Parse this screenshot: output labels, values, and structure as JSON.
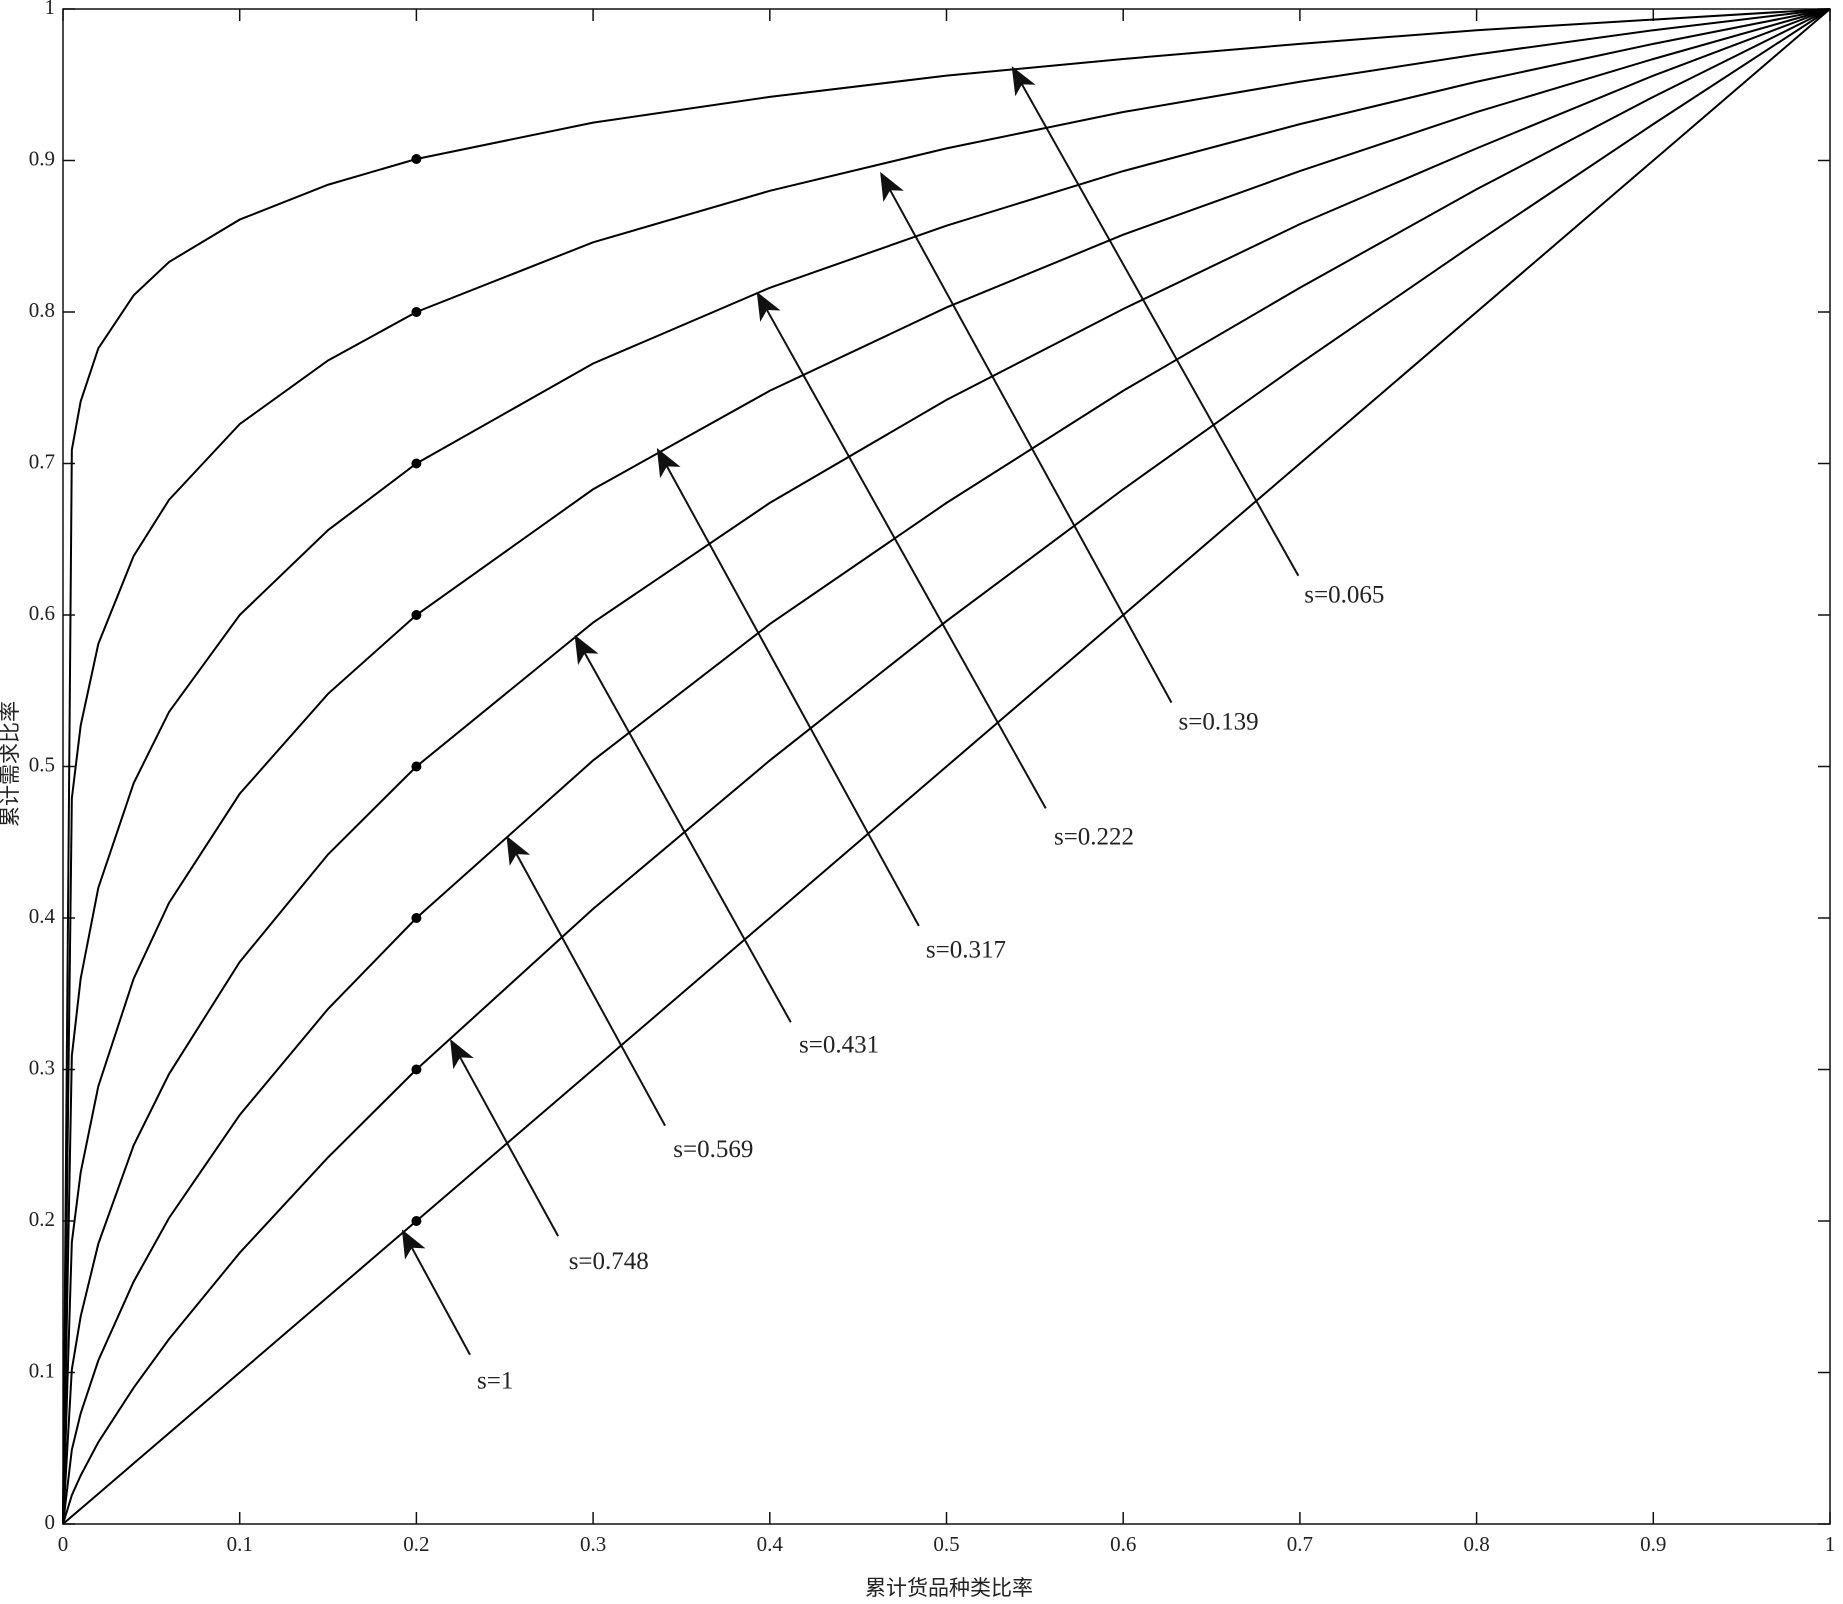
{
  "chart_data": {
    "type": "line",
    "x_label": "累计货品种类比率",
    "y_label": "累计需求比率",
    "x": [
      0,
      0.005,
      0.01,
      0.02,
      0.04,
      0.06,
      0.1,
      0.15,
      0.2,
      0.3,
      0.4,
      0.5,
      0.6,
      0.7,
      0.8,
      0.9,
      1
    ],
    "series": [
      {
        "name": "s=0.065",
        "color": "#000000",
        "values": [
          0,
          0.709,
          0.741,
          0.776,
          0.811,
          0.833,
          0.861,
          0.884,
          0.901,
          0.925,
          0.942,
          0.956,
          0.967,
          0.977,
          0.986,
          0.993,
          1
        ]
      },
      {
        "name": "s=0.139",
        "color": "#000000",
        "values": [
          0,
          0.479,
          0.527,
          0.581,
          0.639,
          0.676,
          0.726,
          0.768,
          0.8,
          0.846,
          0.88,
          0.908,
          0.932,
          0.952,
          0.97,
          0.986,
          1
        ]
      },
      {
        "name": "s=0.222",
        "color": "#000000",
        "values": [
          0,
          0.309,
          0.36,
          0.42,
          0.489,
          0.536,
          0.6,
          0.656,
          0.7,
          0.766,
          0.816,
          0.857,
          0.893,
          0.924,
          0.952,
          0.977,
          1
        ]
      },
      {
        "name": "s=0.317",
        "color": "#000000",
        "values": [
          0,
          0.186,
          0.232,
          0.289,
          0.36,
          0.41,
          0.482,
          0.548,
          0.6,
          0.683,
          0.748,
          0.803,
          0.851,
          0.893,
          0.932,
          0.967,
          1
        ]
      },
      {
        "name": "s=0.431",
        "color": "#000000",
        "values": [
          0,
          0.102,
          0.137,
          0.185,
          0.25,
          0.297,
          0.371,
          0.442,
          0.5,
          0.595,
          0.674,
          0.742,
          0.802,
          0.858,
          0.908,
          0.956,
          1
        ]
      },
      {
        "name": "s=0.569",
        "color": "#000000",
        "values": [
          0,
          0.049,
          0.073,
          0.108,
          0.16,
          0.202,
          0.27,
          0.34,
          0.4,
          0.504,
          0.594,
          0.674,
          0.748,
          0.816,
          0.881,
          0.942,
          1
        ]
      },
      {
        "name": "s=0.748",
        "color": "#000000",
        "values": [
          0,
          0.019,
          0.032,
          0.054,
          0.09,
          0.122,
          0.179,
          0.242,
          0.3,
          0.406,
          0.504,
          0.596,
          0.683,
          0.766,
          0.846,
          0.924,
          1
        ]
      },
      {
        "name": "s=1",
        "color": "#000000",
        "values": [
          0,
          0.005,
          0.01,
          0.02,
          0.04,
          0.06,
          0.1,
          0.15,
          0.2,
          0.3,
          0.4,
          0.5,
          0.6,
          0.7,
          0.8,
          0.9,
          1
        ]
      }
    ],
    "marker_index": 8,
    "xlim": [
      0,
      1
    ],
    "ylim": [
      0,
      1
    ],
    "xticks": [
      0,
      0.1,
      0.2,
      0.3,
      0.4,
      0.5,
      0.6,
      0.7,
      0.8,
      0.9,
      1
    ],
    "yticks": [
      0,
      0.1,
      0.2,
      0.3,
      0.4,
      0.5,
      0.6,
      0.7,
      0.8,
      0.9,
      1
    ],
    "grid": false
  }
}
